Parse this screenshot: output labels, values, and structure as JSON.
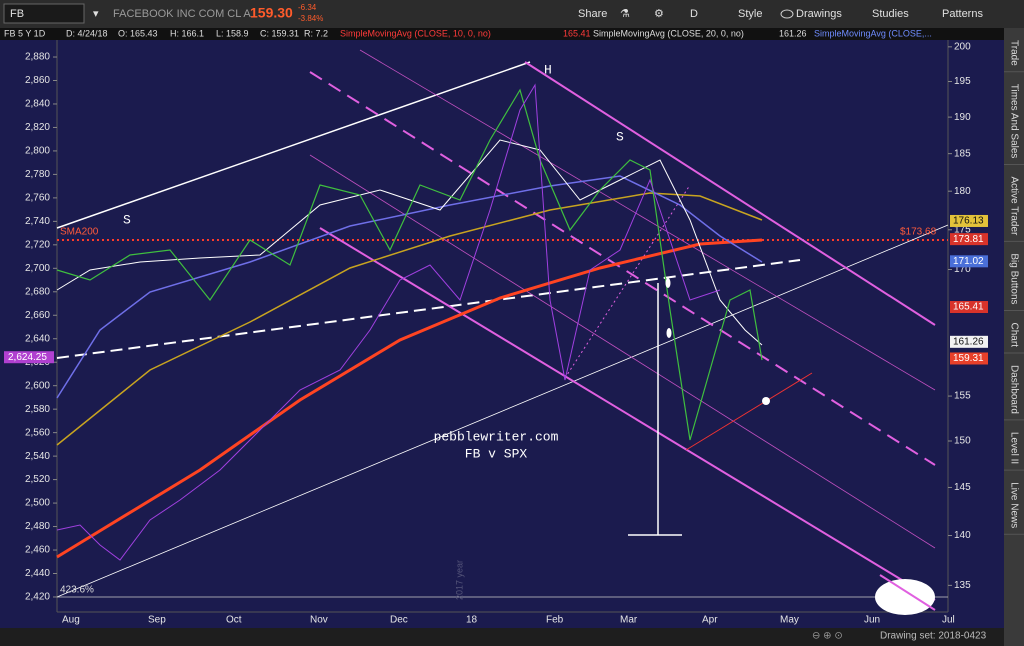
{
  "toolbar": {
    "symbol": "FB",
    "description": "FACEBOOK INC COM CL A",
    "last": "159.30",
    "change": "-6.34",
    "change_pct": "-3.84%",
    "buttons": [
      "Share",
      "D",
      "Style",
      "Drawings",
      "Studies",
      "Patterns"
    ]
  },
  "info_bar": {
    "title": "FB 5 Y 1D",
    "date": "D: 4/24/18",
    "open": "O: 165.43",
    "high": "H: 166.1",
    "low": "L: 158.9",
    "close": "C: 159.31",
    "range": "R: 7.2",
    "studies": [
      {
        "name": "SimpleMovingAvg (CLOSE, 10, 0, no)",
        "value": "165.41"
      },
      {
        "name": "SimpleMovingAvg (CLOSE, 20, 0, no)",
        "value": "161.26"
      },
      {
        "name": "SimpleMovingAvg (CLOSE,..."
      }
    ]
  },
  "left_axis": {
    "ylim": [
      2407.2,
      2894.5
    ],
    "yticks": [
      {
        "value": 2420,
        "label": "2,420"
      },
      {
        "value": 2440,
        "label": "2,440"
      },
      {
        "value": 2460,
        "label": "2,460"
      },
      {
        "value": 2480,
        "label": "2,480"
      },
      {
        "value": 2500,
        "label": "2,500"
      },
      {
        "value": 2520,
        "label": "2,520"
      },
      {
        "value": 2540,
        "label": "2,540"
      },
      {
        "value": 2560,
        "label": "2,560"
      },
      {
        "value": 2580,
        "label": "2,580"
      },
      {
        "value": 2600,
        "label": "2,600"
      },
      {
        "value": 2620,
        "label": "2,620"
      },
      {
        "value": 2640,
        "label": "2,640"
      },
      {
        "value": 2660,
        "label": "2,660"
      },
      {
        "value": 2680,
        "label": "2,680"
      },
      {
        "value": 2700,
        "label": "2,700"
      },
      {
        "value": 2720,
        "label": "2,720"
      },
      {
        "value": 2740,
        "label": "2,740"
      },
      {
        "value": 2760,
        "label": "2,760"
      },
      {
        "value": 2780,
        "label": "2,780"
      },
      {
        "value": 2800,
        "label": "2,800"
      },
      {
        "value": 2820,
        "label": "2,820"
      },
      {
        "value": 2840,
        "label": "2,840"
      },
      {
        "value": 2860,
        "label": "2,860"
      },
      {
        "value": 2880,
        "label": "2,880"
      }
    ]
  },
  "right_axis": {
    "log": true,
    "ylim": [
      132.4,
      201
    ],
    "yticks": [
      135,
      140,
      145,
      150,
      155,
      170,
      175,
      180,
      185,
      190,
      195,
      200
    ]
  },
  "x_axis": {
    "labels": [
      "Aug",
      "Sep",
      "Oct",
      "Nov",
      "Dec",
      "18",
      "Feb",
      "Mar",
      "Apr",
      "May",
      "Jun",
      "Jul"
    ]
  },
  "price_labels": [
    {
      "value": 176.13,
      "color": "#e3c23a"
    },
    {
      "value": 173.81,
      "color": "#d8332a"
    },
    {
      "value": 171.02,
      "color": "#4a6fd8"
    },
    {
      "value": 165.41,
      "color": "#d8332a"
    },
    {
      "value": 161.26,
      "color": "#f2f2f2"
    },
    {
      "value": 159.31,
      "color": "#e8402a"
    }
  ],
  "left_price_label": {
    "value": 2624.25,
    "label": "2,624.25"
  },
  "annotations": {
    "sma200": "SMA200",
    "level": "$173.68",
    "left_shoulder": "S",
    "head": "H",
    "right_shoulder": "S",
    "site": "pebblewriter.com",
    "subtitle": "FB v SPX",
    "fib": "423.6%",
    "year": "2017 year"
  },
  "side_tabs": [
    "Trade",
    "Times And Sales",
    "Active Trader",
    "Big Buttons",
    "Chart",
    "Dashboard",
    "Level II",
    "Live News"
  ],
  "status": "Drawing set: 2018-0423"
}
